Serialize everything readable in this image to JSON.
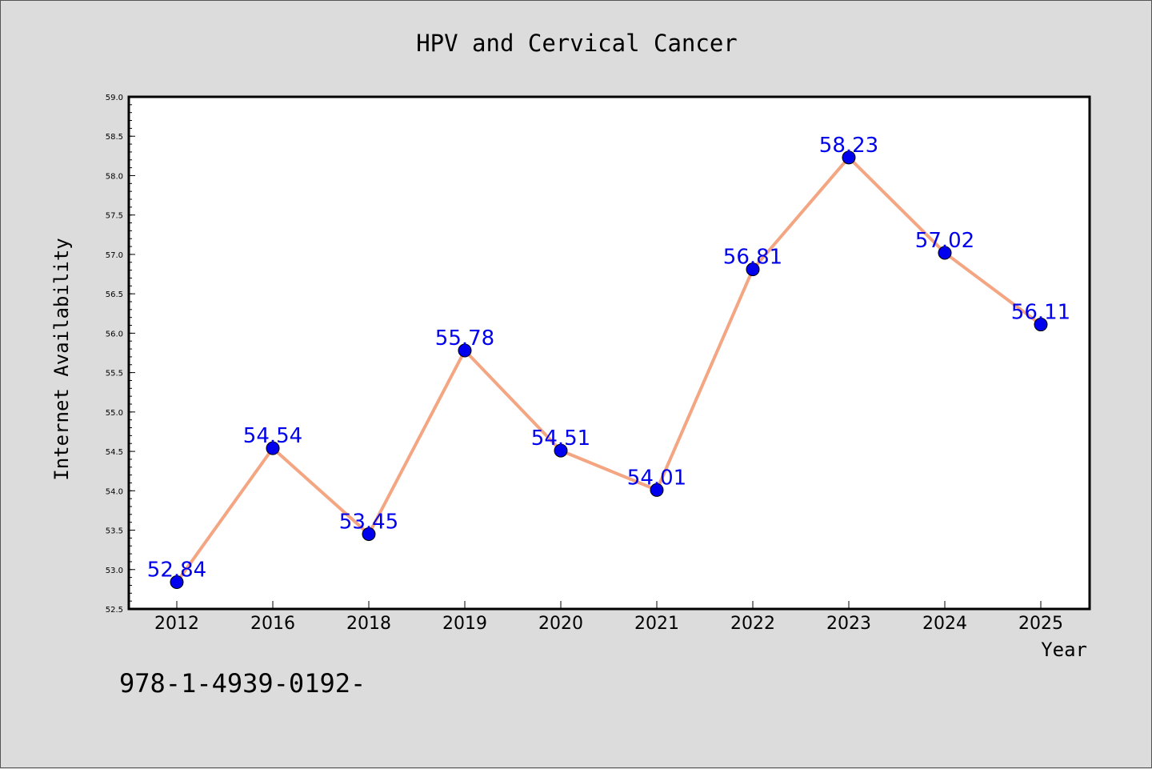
{
  "chart_data": {
    "type": "line",
    "title": "HPV and Cervical Cancer",
    "xlabel": "Year",
    "ylabel": "Internet Availability",
    "categories": [
      "2012",
      "2016",
      "2018",
      "2019",
      "2020",
      "2021",
      "2022",
      "2023",
      "2024",
      "2025"
    ],
    "series": [
      {
        "values": [
          52.84,
          54.54,
          53.45,
          55.78,
          54.51,
          54.01,
          56.81,
          58.23,
          57.02,
          56.11
        ]
      }
    ],
    "data_labels": [
      "52.84",
      "54.54",
      "53.45",
      "55.78",
      "54.51",
      "54.01",
      "56.81",
      "58.23",
      "57.02",
      "56.11"
    ],
    "ylim": [
      52.5,
      59.0
    ],
    "y_ticks": [
      "52.5",
      "53.0",
      "53.5",
      "54.0",
      "54.5",
      "55.0",
      "55.5",
      "56.0",
      "56.5",
      "57.0",
      "57.5",
      "58.0",
      "58.5",
      "59.0"
    ],
    "grid": false,
    "legend": "none",
    "colors": {
      "line": "#f4a582",
      "marker": "#0000ee",
      "label": "#0000ee",
      "background": "#dcdcdc",
      "plot_bg": "#ffffff"
    }
  },
  "footer_text": "978-1-4939-0192-"
}
